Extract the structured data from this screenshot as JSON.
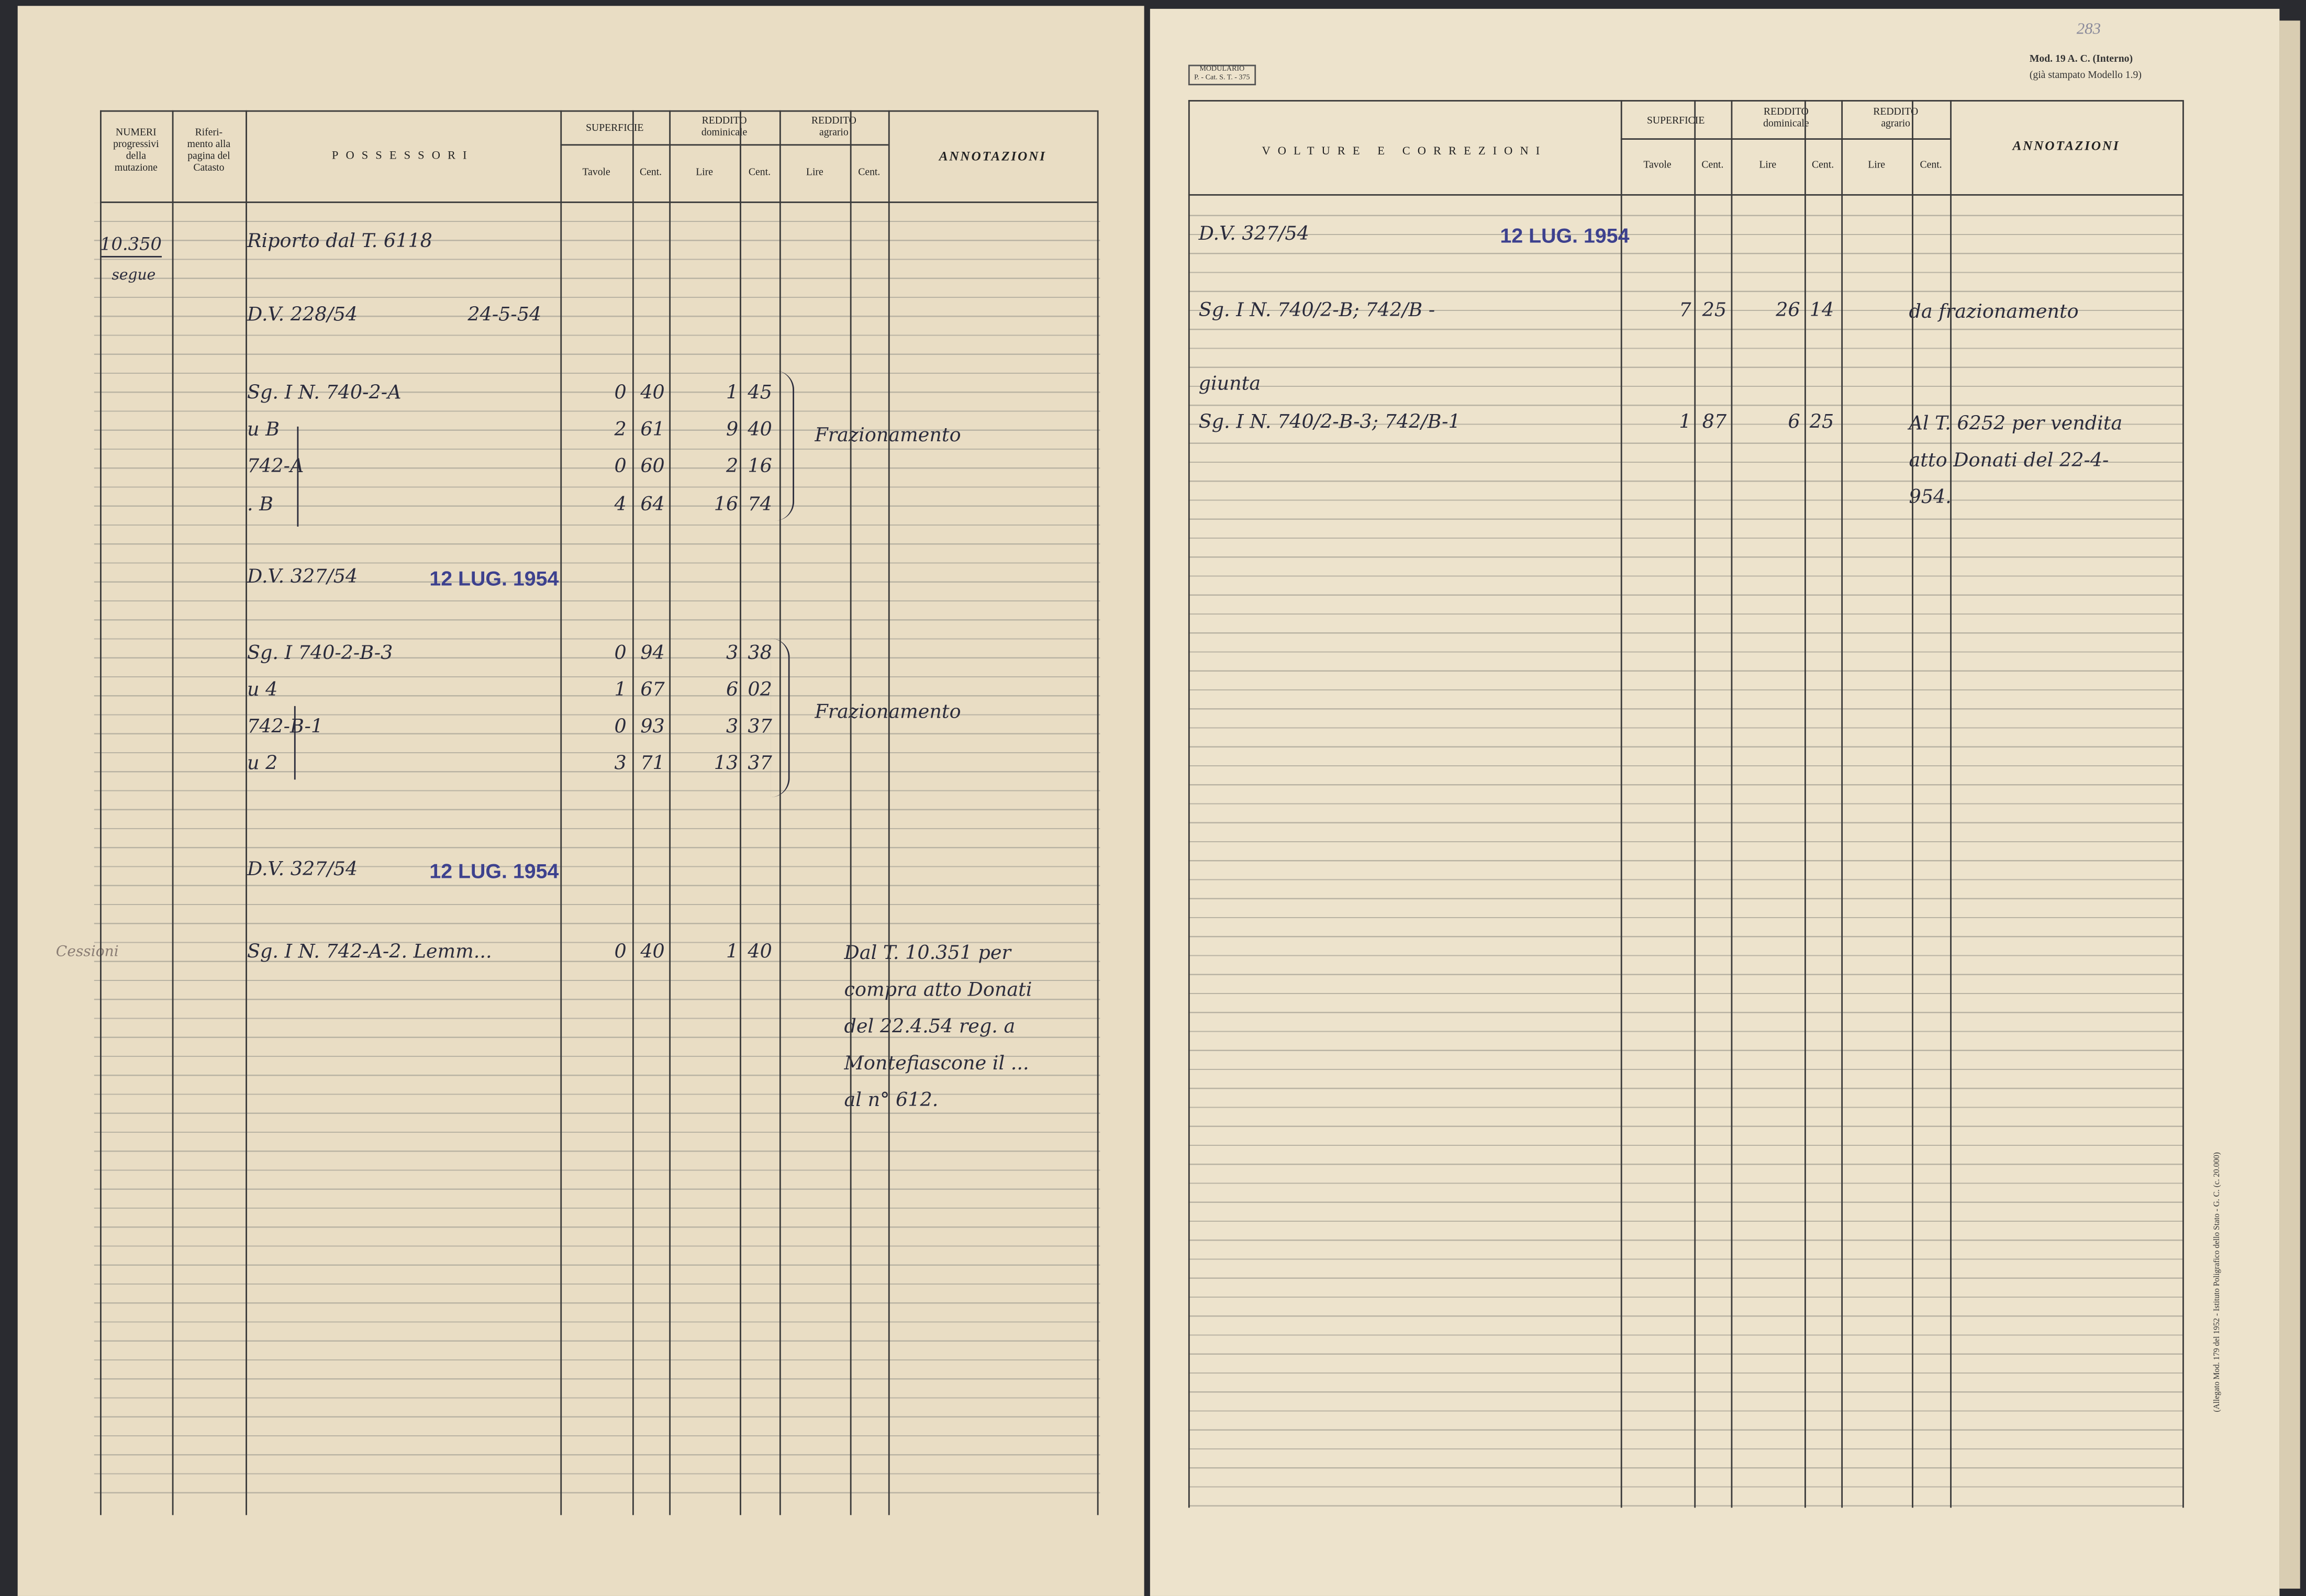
{
  "left_page": {
    "header": {
      "numeri": "NUMERI\nprogressivi\ndella\nmutazione",
      "riferimento": "Riferi-\nmento alla\npagina del\nCatasto",
      "possessori": "POSSESSORI",
      "superficie": "SUPERFICIE",
      "tavole": "Tavole",
      "cent_sup": "Cent.",
      "reddito_dominicale": "REDDITO\ndominicale",
      "lire_dom": "Lire",
      "cent_dom": "Cent.",
      "reddito_agrario": "REDDITO\nagrario",
      "lire_agr": "Lire",
      "cent_agr": "Cent.",
      "annotazioni": "ANNOTAZIONI"
    },
    "number": "10.350",
    "number_note": "segue",
    "margin_note": "Cessioni",
    "rows": [
      {
        "text": "Riporto dal T. 6118"
      },
      {
        "text": "D.V. 228/54",
        "date": "24-5-54"
      },
      {
        "text": "Sg. I N. 740-2-A",
        "tavole": "0",
        "cent_sup": "40",
        "lire": "1",
        "cent_lire": "45"
      },
      {
        "text": "u B",
        "tavole": "2",
        "cent_sup": "61",
        "lire": "9",
        "cent_lire": "40"
      },
      {
        "text": "742-A",
        "tavole": "0",
        "cent_sup": "60",
        "lire": "2",
        "cent_lire": "16"
      },
      {
        "text": ". B",
        "tavole": "4",
        "cent_sup": "64",
        "lire": "16",
        "cent_lire": "74"
      },
      {
        "text": "D.V. 327/54",
        "stamp": "12 LUG. 1954"
      },
      {
        "text": "Sg. I 740-2-B-3",
        "tavole": "0",
        "cent_sup": "94",
        "lire": "3",
        "cent_lire": "38"
      },
      {
        "text": "u 4",
        "tavole": "1",
        "cent_sup": "67",
        "lire": "6",
        "cent_lire": "02"
      },
      {
        "text": "742-B-1",
        "tavole": "0",
        "cent_sup": "93",
        "lire": "3",
        "cent_lire": "37"
      },
      {
        "text": "u 2",
        "tavole": "3",
        "cent_sup": "71",
        "lire": "13",
        "cent_lire": "37"
      },
      {
        "text": "D.V. 327/54",
        "stamp": "12 LUG. 1954"
      },
      {
        "text": "Sg. I N. 742-A-2. Lemm...",
        "tavole": "0",
        "cent_sup": "40",
        "lire": "1",
        "cent_lire": "40"
      }
    ],
    "annotations": [
      "Frazionamento",
      "Frazionamento",
      "Dal T. 10.351 per\ncompra atto Donati\ndel 22.4.54 reg. a\nMontefiascone il ...\nal n° 612."
    ]
  },
  "right_page": {
    "page_number": "283",
    "modulario": "MODULARIO\nP. - Cat. S. T. - 375",
    "model": "Mod. 19 A. C. (Interno)",
    "model_note": "(già stampato Modello 1.9)",
    "header": {
      "volture": "VOLTURE E CORREZIONI",
      "superficie": "SUPERFICIE",
      "tavole": "Tavole",
      "cent_sup": "Cent.",
      "reddito_dominicale": "REDDITO\ndominicale",
      "lire_dom": "Lire",
      "cent_dom": "Cent.",
      "reddito_agrario": "REDDITO\nagrario",
      "lire_agr": "Lire",
      "cent_agr": "Cent.",
      "annotazioni": "ANNOTAZIONI"
    },
    "rows": [
      {
        "text": "D.V. 327/54",
        "stamp": "12 LUG. 1954"
      },
      {
        "text": "Sg. I N. 740/2-B; 742/B -",
        "tavole": "7",
        "cent_sup": "25",
        "lire": "26",
        "cent_lire": "14"
      },
      {
        "text": "giunta"
      },
      {
        "text": "Sg. I N. 740/2-B-3; 742/B-1",
        "tavole": "1",
        "cent_sup": "87",
        "lire": "6",
        "cent_lire": "25"
      }
    ],
    "annotations": [
      "da frazionamento",
      "Al T. 6252 per vendita\natto Donati del 22-4-\n954."
    ],
    "imprint": "(Allegato Mod. 179 del 1952 - Istituto Poligrafico dello Stato - G. C. (c. 20.000)"
  }
}
